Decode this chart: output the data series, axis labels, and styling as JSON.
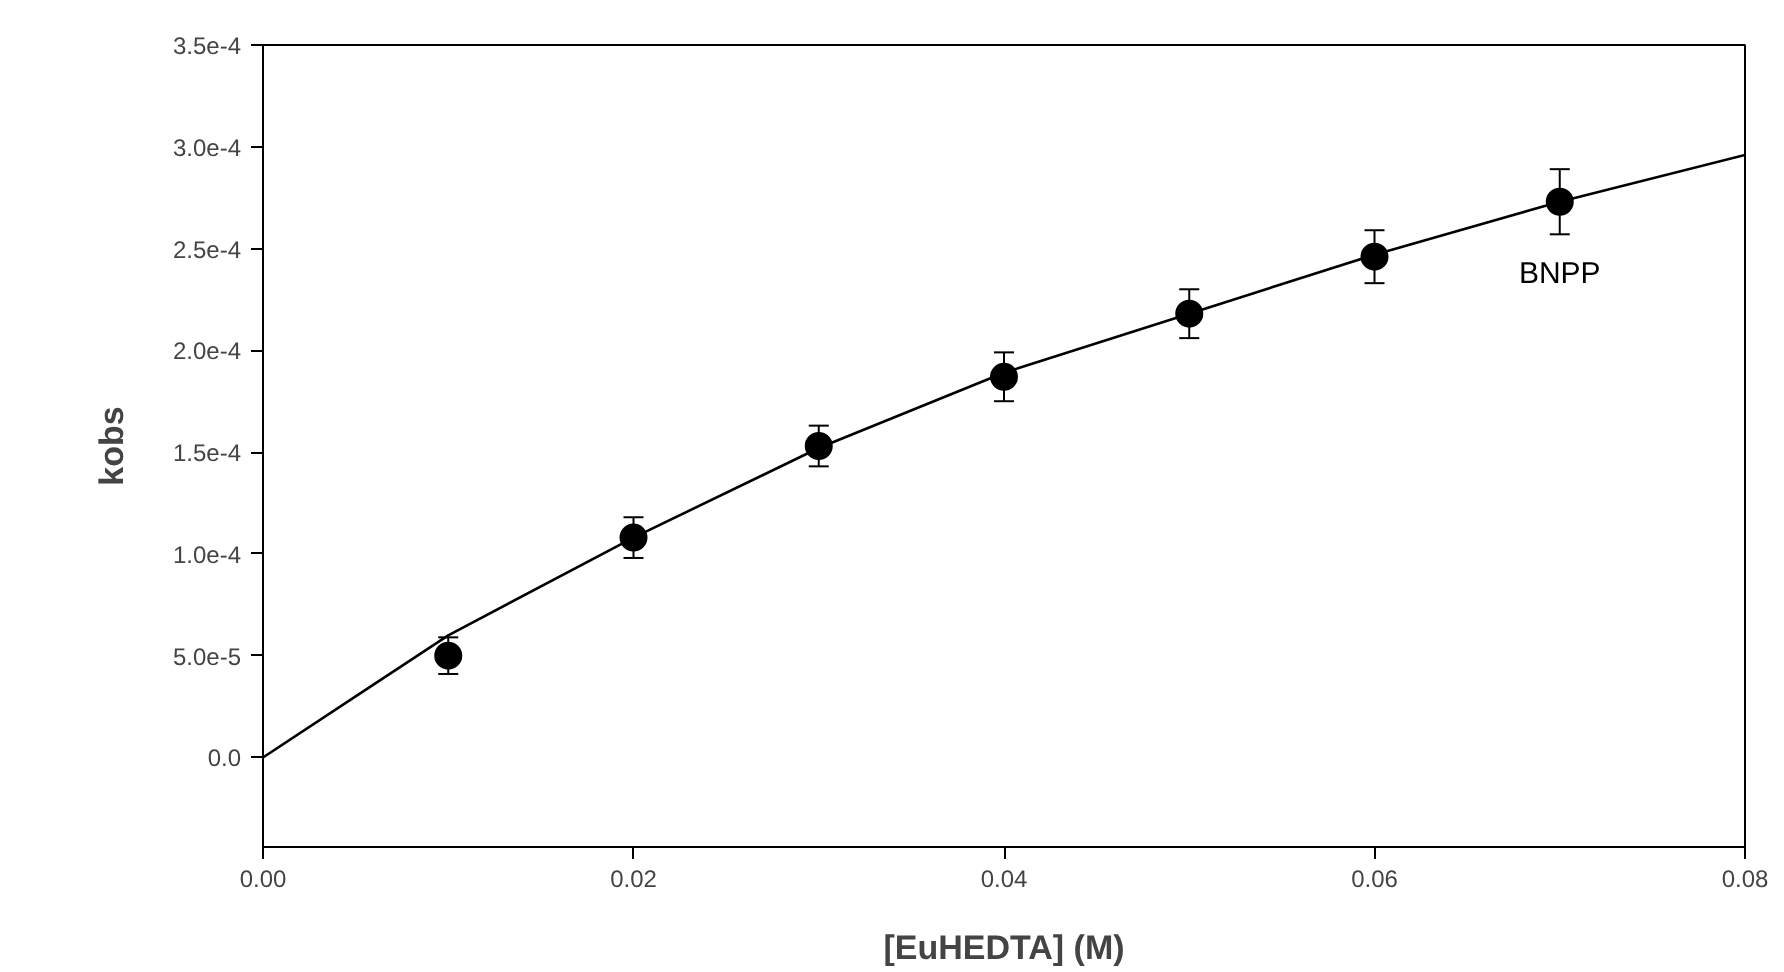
{
  "chart_data": {
    "type": "scatter",
    "xlabel": "[EuHEDTA] (M)",
    "ylabel": "kobs",
    "xlim": [
      0,
      0.08
    ],
    "ylim": [
      -4.4e-05,
      0.00035
    ],
    "xticks": [
      {
        "value": 0,
        "label": "0.00"
      },
      {
        "value": 0.02,
        "label": "0.02"
      },
      {
        "value": 0.04,
        "label": "0.04"
      },
      {
        "value": 0.06,
        "label": "0.06"
      },
      {
        "value": 0.08,
        "label": "0.08"
      }
    ],
    "yticks": [
      {
        "value": 0,
        "label": "0.0"
      },
      {
        "value": 5e-05,
        "label": "5.0e-5"
      },
      {
        "value": 0.0001,
        "label": "1.0e-4"
      },
      {
        "value": 0.00015,
        "label": "1.5e-4"
      },
      {
        "value": 0.0002,
        "label": "2.0e-4"
      },
      {
        "value": 0.00025,
        "label": "2.5e-4"
      },
      {
        "value": 0.0003,
        "label": "3.0e-4"
      },
      {
        "value": 0.00035,
        "label": "3.5e-4"
      }
    ],
    "grid": false,
    "series": [
      {
        "name": "BNPP",
        "marker": "circle",
        "color": "#000000",
        "x": [
          0.01,
          0.02,
          0.03,
          0.04,
          0.05,
          0.06,
          0.07
        ],
        "values": [
          5e-05,
          0.000108,
          0.000153,
          0.000187,
          0.000218,
          0.000246,
          0.000273
        ],
        "errors": [
          9e-06,
          1e-05,
          1e-05,
          1.2e-05,
          1.2e-05,
          1.3e-05,
          1.6e-05
        ]
      },
      {
        "type": "line",
        "color": "#000000",
        "line_style": "solid",
        "x": [
          0,
          0.005,
          0.01,
          0.02,
          0.03,
          0.04,
          0.05,
          0.06,
          0.07,
          0.08
        ],
        "values": [
          0,
          3e-05,
          6e-05,
          0.000108,
          0.000152,
          0.000189,
          0.000218,
          0.000247,
          0.000273,
          0.000296
        ]
      }
    ]
  }
}
